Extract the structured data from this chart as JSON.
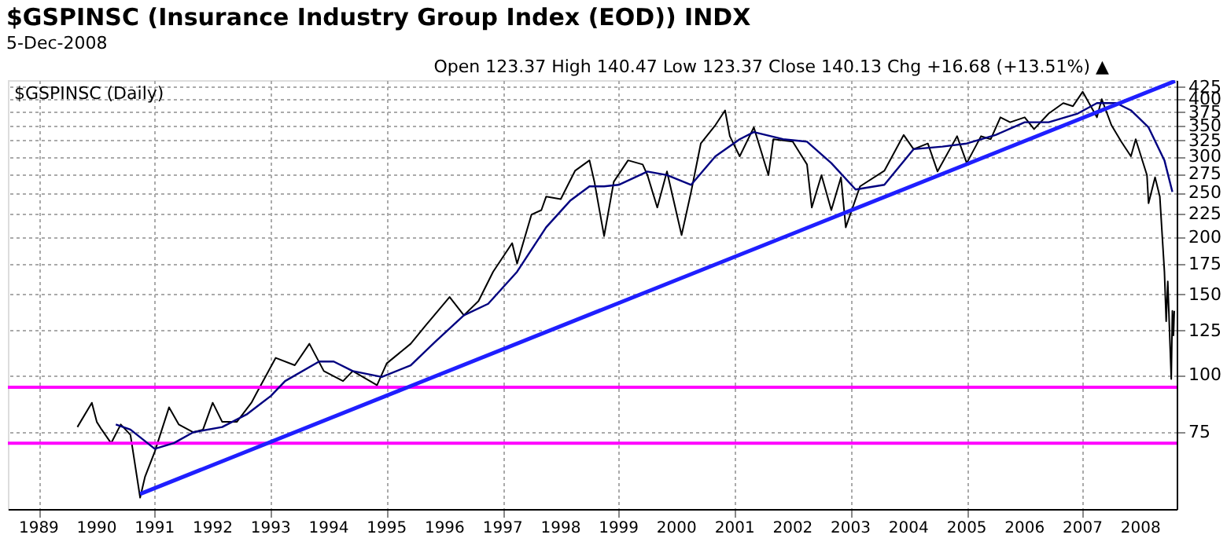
{
  "chart_data": {
    "type": "line",
    "title": "$GSPINSC (Insurance Industry Group Index (EOD)) INDX",
    "subtitle": "5-Dec-2008",
    "annotations": [
      "Open 123.37 High 140.47 Low 123.37 Close 140.13 Chg +16.68 (+13.51%) ▲"
    ],
    "xlim": [
      "1988-06-20",
      "2008-08-15"
    ],
    "xticks": [
      "1989",
      "1990",
      "1991",
      "1992",
      "1993",
      "1994",
      "1995",
      "1996",
      "1997",
      "1998",
      "1999",
      "2000",
      "2001",
      "2002",
      "2003",
      "2004",
      "2005",
      "2006",
      "2007",
      "2008"
    ],
    "ylim": [
      51,
      440
    ],
    "yticks": [
      75,
      100,
      125,
      150,
      175,
      200,
      225,
      250,
      275,
      300,
      325,
      350,
      375,
      400,
      425
    ],
    "log": true,
    "grid": true,
    "legend": "top left",
    "series": [
      {
        "name": "$GSPINSC (Daily)",
        "color": "#000000",
        "x": [
          "1989-09",
          "1989-12",
          "1990-01",
          "1990-02",
          "1990-04",
          "1990-06",
          "1990-08",
          "1990-10",
          "1990-11",
          "1991-01",
          "1991-04",
          "1991-06",
          "1991-09",
          "1991-11",
          "1992-01",
          "1992-03",
          "1992-06",
          "1992-09",
          "1992-10",
          "1993-02",
          "1993-06",
          "1993-09",
          "1993-12",
          "1994-04",
          "1994-06",
          "1994-11",
          "1995-01",
          "1995-06",
          "1995-09",
          "1996-02",
          "1996-05",
          "1996-08",
          "1996-11",
          "1997-03",
          "1997-04",
          "1997-07",
          "1997-09",
          "1997-10",
          "1998-01",
          "1998-04",
          "1998-07",
          "1998-08",
          "1998-10",
          "1998-12",
          "1999-03",
          "1999-06",
          "1999-07",
          "1999-09",
          "1999-11",
          "2000-02",
          "2000-04",
          "2000-06",
          "2000-09",
          "2000-11",
          "2000-12",
          "2001-02",
          "2001-05",
          "2001-08",
          "2001-09",
          "2002-01",
          "2002-04",
          "2002-05",
          "2002-07",
          "2002-09",
          "2002-11",
          "2002-12",
          "2003-03",
          "2003-08",
          "2003-12",
          "2004-02",
          "2004-05",
          "2004-07",
          "2004-11",
          "2005-01",
          "2005-04",
          "2005-06",
          "2005-08",
          "2005-10",
          "2006-01",
          "2006-03",
          "2006-06",
          "2006-09",
          "2006-11",
          "2007-01",
          "2007-04",
          "2007-05",
          "2007-07",
          "2007-09",
          "2007-11",
          "2007-12",
          "2008-02-10",
          "2008-02-20",
          "2008-04-01",
          "2008-05-01",
          "2008-05-30",
          "2008-06-10",
          "2008-06-20",
          "2008-07-12",
          "2008-07-19",
          "2008-07-26",
          "2008-07-31"
        ],
        "values": [
          77,
          87,
          79,
          76,
          71,
          78,
          74,
          54,
          60,
          68,
          85,
          78,
          75,
          76,
          87,
          79,
          79,
          87,
          91,
          109,
          105,
          117,
          102,
          97,
          102,
          95,
          106,
          117,
          128,
          148,
          135,
          145,
          168,
          194,
          175,
          224,
          229,
          245,
          242,
          279,
          294,
          264,
          201,
          264,
          294,
          288,
          273,
          232,
          278,
          202,
          251,
          320,
          351,
          378,
          332,
          300,
          347,
          273,
          327,
          323,
          288,
          232,
          273,
          229,
          270,
          210,
          258,
          279,
          334,
          311,
          320,
          278,
          332,
          290,
          332,
          327,
          365,
          356,
          365,
          344,
          372,
          392,
          386,
          415,
          365,
          400,
          351,
          323,
          300,
          327,
          273,
          237,
          270,
          245,
          168,
          131,
          160,
          98,
          138,
          122,
          138
        ]
      },
      {
        "color": "#000080",
        "x": [
          "1990-05",
          "1990-08",
          "1991-01",
          "1991-05",
          "1991-09",
          "1992-03",
          "1992-08",
          "1993-01",
          "1993-04",
          "1993-11",
          "1994-02",
          "1994-06",
          "1994-12",
          "1995-06",
          "1995-11",
          "1996-05",
          "1996-10",
          "1997-04",
          "1997-10",
          "1998-03",
          "1998-07",
          "1998-10",
          "1999-01",
          "1999-07",
          "1999-11",
          "2000-04",
          "2000-09",
          "2001-02",
          "2001-05",
          "2001-11",
          "2002-04",
          "2002-09",
          "2003-02",
          "2003-08",
          "2004-02",
          "2004-08",
          "2005-01",
          "2005-07",
          "2006-01",
          "2006-06",
          "2006-12",
          "2007-04",
          "2007-08",
          "2007-11",
          "2008-02-20",
          "2008-05-30",
          "2008-07-19"
        ],
        "values": [
          78,
          76,
          69,
          71,
          75,
          77,
          82,
          90,
          97,
          107,
          107,
          102,
          99,
          105,
          118,
          135,
          143,
          168,
          210,
          240,
          258,
          258,
          260,
          278,
          273,
          260,
          300,
          327,
          339,
          327,
          323,
          290,
          254,
          260,
          311,
          315,
          320,
          334,
          356,
          356,
          372,
          392,
          392,
          378,
          347,
          294,
          251
        ]
      },
      {
        "type": "line",
        "color": "#1f1fff",
        "x": [
          "1990-10",
          "2008-08-05"
        ],
        "values": [
          55,
          438
        ]
      }
    ],
    "ref_lines": [
      {
        "axis": "y",
        "value": 94,
        "color": "#ff00ff"
      },
      {
        "axis": "y",
        "value": 71,
        "color": "#ff00ff"
      }
    ]
  }
}
